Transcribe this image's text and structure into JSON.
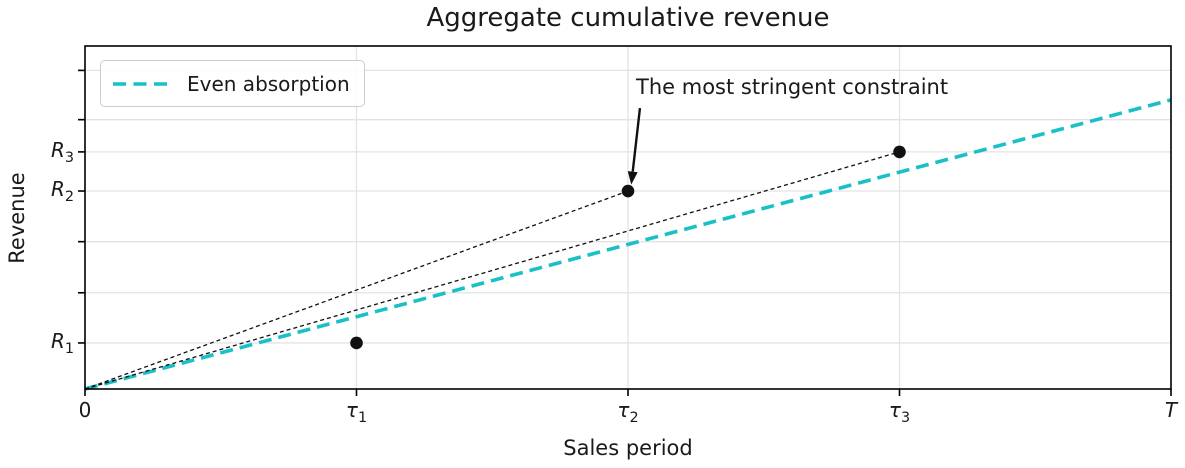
{
  "figure": {
    "title": "Aggregate cumulative revenue",
    "xlabel": "Sales period",
    "ylabel": "Revenue"
  },
  "legend": {
    "items": [
      {
        "label": "Even absorption",
        "color": "#19c0c8",
        "style": "dashed"
      }
    ]
  },
  "colors": {
    "accent_cyan": "#19c0c8",
    "line_black": "#111111",
    "grid": "#e3e3e3",
    "spine": "#000000",
    "text": "#1a1a1a"
  },
  "chart_data": {
    "type": "line",
    "title": "Aggregate cumulative revenue",
    "xlabel": "Sales period",
    "ylabel": "Revenue",
    "xlim": [
      0,
      1
    ],
    "ylim": [
      0,
      7.45
    ],
    "grid": true,
    "legend_position": "upper-left",
    "x_ticks": [
      {
        "v": 0,
        "t": "0"
      },
      {
        "v": 0.25,
        "t": "τ",
        "sub": "1",
        "italic": true
      },
      {
        "v": 0.5,
        "t": "τ",
        "sub": "2",
        "italic": true
      },
      {
        "v": 0.75,
        "t": "τ",
        "sub": "3",
        "italic": true
      },
      {
        "v": 1,
        "t": "T",
        "italic": true
      }
    ],
    "y_ticks": [
      {
        "v": 1.0,
        "t": "R",
        "sub": "1",
        "italic": true
      },
      {
        "v": 2.09
      },
      {
        "v": 3.2
      },
      {
        "v": 4.3,
        "t": "R",
        "sub": "2",
        "italic": true
      },
      {
        "v": 5.15,
        "t": "R",
        "sub": "3",
        "italic": true
      },
      {
        "v": 5.85
      },
      {
        "v": 6.92
      }
    ],
    "series": [
      {
        "name": "Even absorption",
        "color": "#19c0c8",
        "width": 3.6,
        "dash": "13 7",
        "points": [
          [
            0,
            0
          ],
          [
            1,
            6.28
          ]
        ]
      },
      {
        "name": "constraint-line-tau2",
        "color": "#111111",
        "width": 1.3,
        "dash": "4 3",
        "points": [
          [
            0,
            0
          ],
          [
            0.5,
            4.3
          ]
        ]
      },
      {
        "name": "constraint-line-tau3",
        "color": "#111111",
        "width": 1.3,
        "dash": "4 3",
        "points": [
          [
            0,
            0
          ],
          [
            0.75,
            5.15
          ]
        ]
      }
    ],
    "markers": {
      "color": "#111111",
      "radius": 6.3,
      "points": [
        [
          0.25,
          1.0
        ],
        [
          0.5,
          4.3
        ],
        [
          0.75,
          5.15
        ]
      ]
    },
    "annotation": {
      "text": "The most stringent constraint",
      "arrow_start": [
        0.511,
        6.1
      ],
      "arrow_end": [
        0.503,
        4.44
      ]
    }
  }
}
